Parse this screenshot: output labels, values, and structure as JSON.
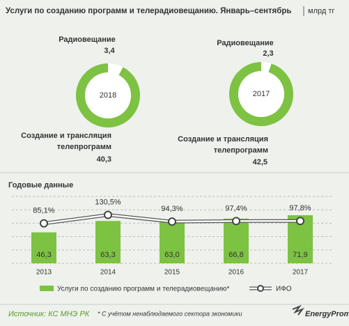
{
  "title": "Услуги по созданию программ и телерадиовещанию. Январь–сентябрь",
  "unit": "млрд тг",
  "chart_data": [
    {
      "type": "donut",
      "center_label": "2018",
      "categories": [
        "Радиовещание",
        "Создание и трансляция телепрограмм"
      ],
      "values": [
        3.4,
        40.3
      ],
      "value_labels": [
        "3,4",
        "40,3"
      ],
      "colors": [
        "#ffffff",
        "#7dc242"
      ]
    },
    {
      "type": "donut",
      "center_label": "2017",
      "categories": [
        "Радиовещание",
        "Создание и трансляция телепрограмм"
      ],
      "values": [
        2.3,
        42.5
      ],
      "value_labels": [
        "2,3",
        "42,5"
      ],
      "colors": [
        "#ffffff",
        "#7dc242"
      ]
    },
    {
      "type": "bar",
      "subtitle": "Годовые данные",
      "categories": [
        "2013",
        "2014",
        "2015",
        "2016",
        "2017"
      ],
      "ylim": [
        0,
        100
      ],
      "yticks": [
        0,
        20,
        40,
        60,
        80,
        100
      ],
      "grid": true,
      "y2lim": [
        -130,
        230
      ],
      "series": [
        {
          "name": "Услуги по созданию программ и телерадиовещанию*",
          "color": "#7dc242",
          "values": [
            46.3,
            63.3,
            63.0,
            66.8,
            71.9
          ],
          "value_labels": [
            "46,3",
            "63,3",
            "63,0",
            "66,8",
            "71,9"
          ]
        },
        {
          "name": "ИФО",
          "type": "line",
          "axis": "y2",
          "color": "#ffffff",
          "values": [
            85.1,
            130.5,
            94.3,
            97.4,
            97.8
          ],
          "value_labels": [
            "85,1%",
            "130,5%",
            "94,3%",
            "97,4%",
            "97,8%"
          ]
        }
      ]
    }
  ],
  "footer": {
    "source": "Источник: КС МНЭ РК",
    "note": "* С учётом ненаблюдаемого сектора экономики",
    "brand": "EnergyProm"
  }
}
